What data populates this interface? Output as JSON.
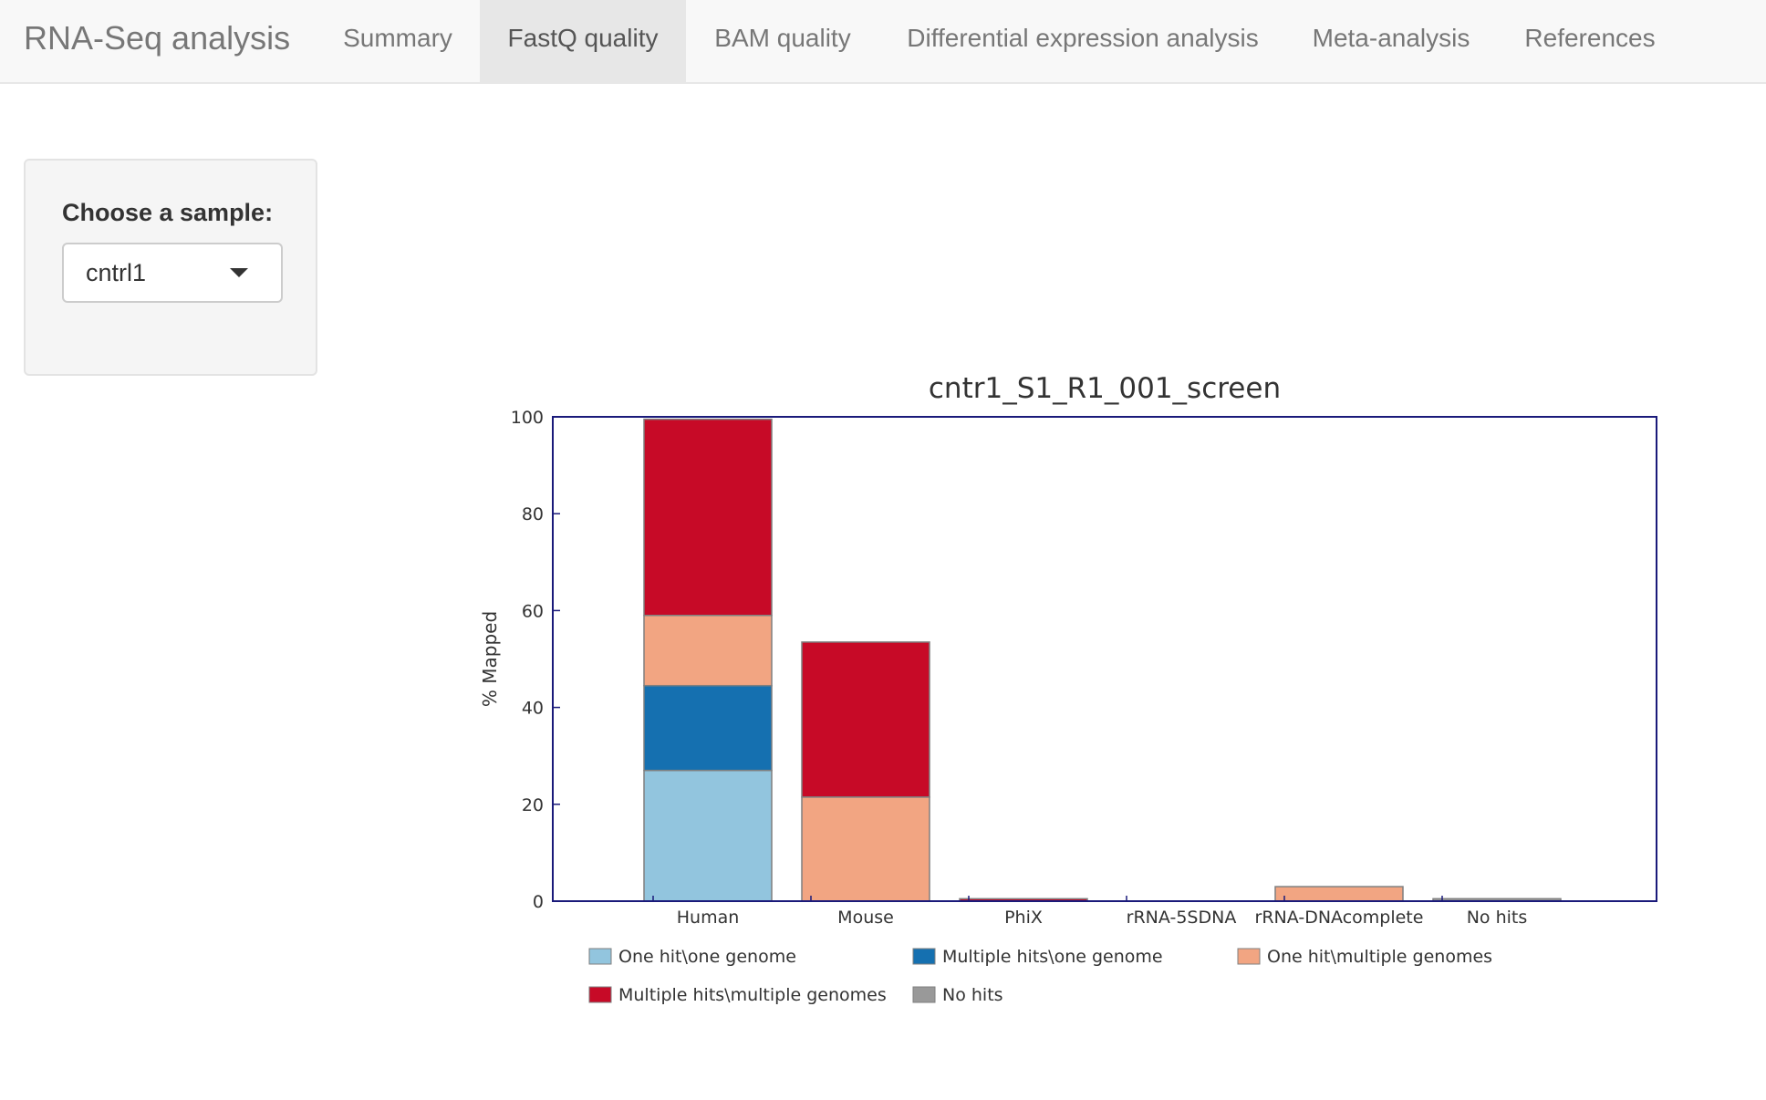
{
  "navbar": {
    "brand": "RNA-Seq analysis",
    "tabs": [
      {
        "label": "Summary",
        "active": false
      },
      {
        "label": "FastQ quality",
        "active": true
      },
      {
        "label": "BAM quality",
        "active": false
      },
      {
        "label": "Differential expression analysis",
        "active": false
      },
      {
        "label": "Meta-analysis",
        "active": false
      },
      {
        "label": "References",
        "active": false
      }
    ]
  },
  "sidebar": {
    "label": "Choose a sample:",
    "selected": "cntrl1",
    "caret_icon": "caret-down-icon"
  },
  "chart_data": {
    "type": "bar",
    "stacked": true,
    "title": "cntr1_S1_R1_001_screen",
    "xlabel": "",
    "ylabel": "% Mapped",
    "ylim": [
      0,
      100
    ],
    "yticks": [
      "0",
      "20",
      "40",
      "60",
      "80",
      "100"
    ],
    "categories": [
      "Human",
      "Mouse",
      "PhiX",
      "rRNA-5SDNA",
      "rRNA-DNAcomplete",
      "No hits"
    ],
    "series": [
      {
        "name": "One hit\\one genome",
        "color": "#92c5de",
        "values": [
          27,
          0,
          0,
          0,
          0,
          0
        ]
      },
      {
        "name": "Multiple hits\\one genome",
        "color": "#1570b0",
        "values": [
          17.5,
          0,
          0,
          0,
          0,
          0
        ]
      },
      {
        "name": "One hit\\multiple genomes",
        "color": "#f2a582",
        "values": [
          14.5,
          21.5,
          0,
          0,
          3,
          0
        ]
      },
      {
        "name": "Multiple hits\\multiple genomes",
        "color": "#c70a27",
        "values": [
          40.5,
          32,
          0.5,
          0,
          0,
          0
        ]
      },
      {
        "name": "No hits",
        "color": "#999999",
        "values": [
          0,
          0,
          0,
          0,
          0,
          0.5
        ]
      }
    ],
    "grid": false,
    "legend_position": "bottom"
  }
}
